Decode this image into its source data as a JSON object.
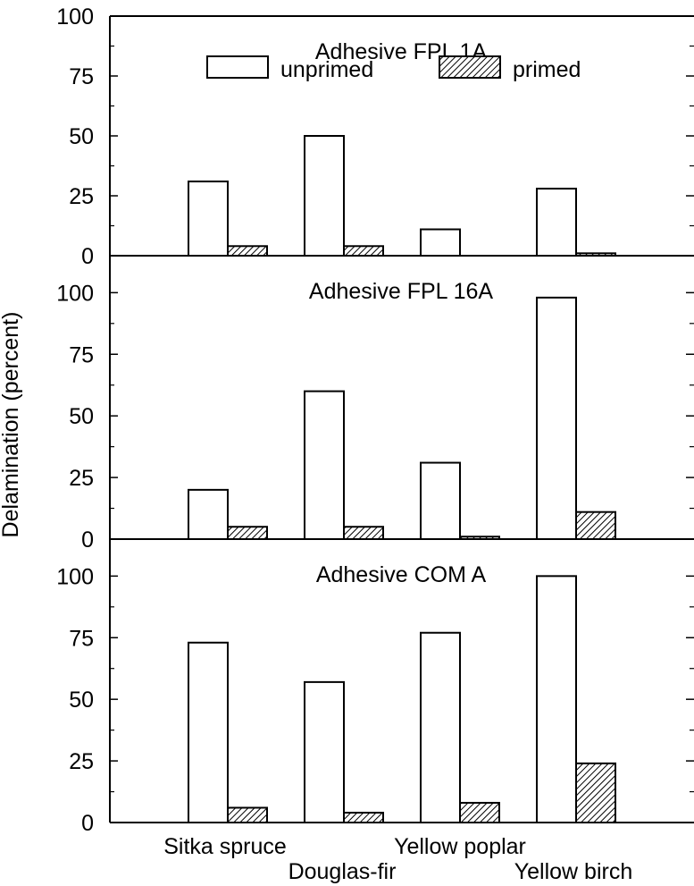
{
  "chart_data": {
    "type": "bar",
    "ylabel": "Delamination (percent)",
    "categories": [
      "Sitka spruce",
      "Douglas-fir",
      "Yellow poplar",
      "Yellow birch"
    ],
    "legend": {
      "placement": "top-center",
      "entries": [
        "unprimed",
        "primed"
      ]
    },
    "grid": false,
    "panels": [
      {
        "title": "Adhesive FPL 1A",
        "ylim": [
          0,
          100
        ],
        "yticks": [
          0,
          25,
          50,
          75,
          100
        ],
        "series": [
          {
            "name": "unprimed",
            "values": [
              31,
              50,
              11,
              28
            ]
          },
          {
            "name": "primed",
            "values": [
              4,
              4,
              0,
              1
            ]
          }
        ]
      },
      {
        "title": "Adhesive FPL 16A",
        "ylim": [
          0,
          115
        ],
        "yticks": [
          0,
          25,
          50,
          75,
          100
        ],
        "series": [
          {
            "name": "unprimed",
            "values": [
              20,
              60,
              31,
              98
            ]
          },
          {
            "name": "primed",
            "values": [
              5,
              5,
              1,
              11
            ]
          }
        ]
      },
      {
        "title": "Adhesive COM A",
        "ylim": [
          0,
          115
        ],
        "yticks": [
          0,
          25,
          50,
          75,
          100
        ],
        "series": [
          {
            "name": "unprimed",
            "values": [
              73,
              57,
              77,
              100
            ]
          },
          {
            "name": "primed",
            "values": [
              6,
              4,
              8,
              24
            ]
          }
        ]
      }
    ]
  }
}
